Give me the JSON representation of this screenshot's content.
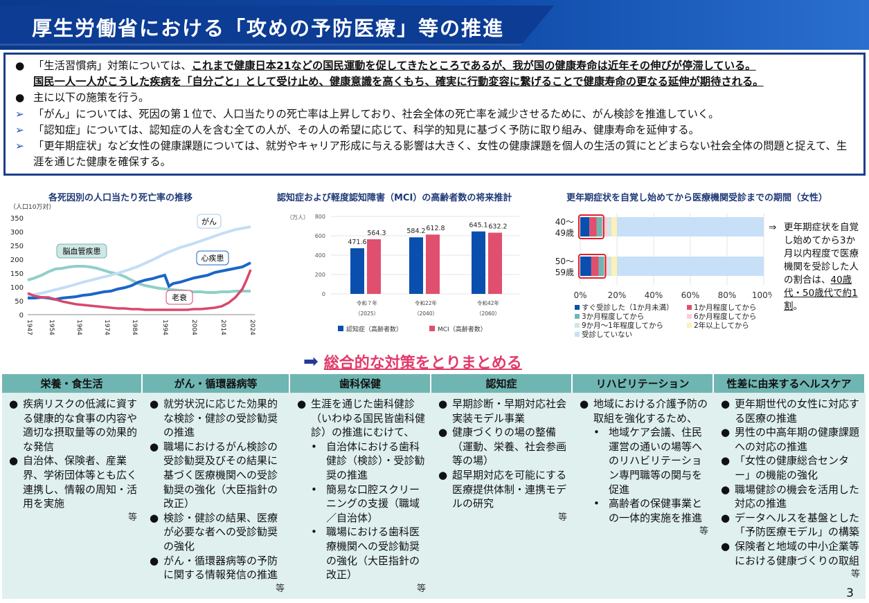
{
  "header": {
    "title": "厚生労働省における「攻めの予防医療」等の推進"
  },
  "summary": {
    "line1_pre": "「生活習慣病」対策については、",
    "line1_bold": "これまで健康日本21などの国民運動を促してきたところであるが、我が国の健康寿命は近年その伸びが停滞している。",
    "line2_bold": "国民一人一人がこうした疾病を「自分ごと」として受け止め、健康意識を高くもち、確実に行動変容に繋げることで健康寿命の更なる延伸が期待される。",
    "line3": "主に以下の施策を行う。",
    "line4": "「がん」については、死因の第１位で、人口当たりの死亡率は上昇しており、社会全体の死亡率を減少させるために、がん検診を推進していく。",
    "line5": "「認知症」については、認知症の人を含む全ての人が、その人の希望に応じて、科学的知見に基づく予防に取り組み、健康寿命を延伸する。",
    "line6": "「更年期症状」など女性の健康課題については、就労やキャリア形成に与える影響は大きく、女性の健康課題を個人の生活の質にとどまらない社会全体の問題と捉えて、生涯を通じた健康を確保する。"
  },
  "chart1": {
    "title": "各死因別の人口当たり死亡率の推移",
    "unit": "（人口10万対）",
    "yticks": [
      "350",
      "300",
      "250",
      "200",
      "150",
      "100",
      "50",
      "0"
    ],
    "xticks": [
      "1947",
      "1954",
      "1964",
      "1974",
      "1984",
      "1994",
      "2004",
      "2014",
      "2024"
    ],
    "labels": {
      "cancer": "がん",
      "stroke": "脳血管疾患",
      "heart": "心疾患",
      "senility": "老衰"
    }
  },
  "chart2": {
    "title": "認知症および軽度認知障害（MCI）の高齢者数の将来推計",
    "unit": "（万人）",
    "yticks": [
      "800",
      "600",
      "400",
      "200",
      "0"
    ],
    "groups": [
      {
        "label": "令和７年",
        "year": "（2025）",
        "dementia": 471.6,
        "mci": 564.3,
        "dementia_label": "471.6",
        "mci_label": "564.3"
      },
      {
        "label": "令和22年",
        "year": "（2040）",
        "dementia": 584.2,
        "mci": 612.8,
        "dementia_label": "584.2",
        "mci_label": "612.8"
      },
      {
        "label": "令和42年",
        "year": "（2060）",
        "dementia": 645.1,
        "mci": 632.2,
        "dementia_label": "645.1",
        "mci_label": "632.2"
      }
    ],
    "legend_dementia": "認知症（高齢者数）",
    "legend_mci": "MCI（高齢者数）",
    "colors": {
      "dementia": "#0b4fae",
      "mci": "#e0506e"
    }
  },
  "chart3": {
    "title": "更年期症状を自覚し始めてから医療機関受診までの期間（女性）",
    "rows": [
      {
        "label_a": "40～",
        "label_b": "49歳",
        "segments": [
          5,
          4,
          3,
          3,
          2,
          3,
          80
        ]
      },
      {
        "label_a": "50～",
        "label_b": "59歳",
        "segments": [
          6,
          4,
          3,
          2,
          2,
          3,
          80
        ]
      }
    ],
    "xticks": [
      "0%",
      "20%",
      "40%",
      "60%",
      "80%",
      "100%"
    ],
    "legend": [
      "すぐ受診した（1か月未満）",
      "1か月程度してから",
      "3か月程度してから",
      "6か月程度してから",
      "9か月～1年程度してから",
      "2年以上してから",
      "受診していない"
    ],
    "colors": [
      "#0b4fae",
      "#e0506e",
      "#6fb6b3",
      "#f6d0d8",
      "#cfe7e5",
      "#fdf0b8",
      "#c7e0f7"
    ],
    "note_pre": "更年期症状を自覚し始めてから3か月以内程度で医療機関を受診した人の割合は、",
    "note_em": "40歳代・50歳代で約1割",
    "note_post": "。"
  },
  "banner": {
    "text": "総合的な対策をとりまとめる"
  },
  "columns": [
    {
      "header": "栄養・食生活",
      "items": [
        "疾病リスクの低減に資する健康的な食事の内容や適切な摂取量等の効果的な発信",
        "自治体、保険者、産業界、学術団体等とも広く連携し、情報の周知・活用を実施"
      ],
      "etc": "等"
    },
    {
      "header": "がん・循環器病等",
      "items": [
        "就労状況に応じた効果的な検診・健診の受診勧奨の推進",
        "職場におけるがん検診の受診勧奨及びその結果に基づく医療機関への受診勧奨の強化（大臣指針の改正）",
        "検診・健診の結果、医療が必要な者への受診勧奨の強化",
        "がん・循環器病等の予防に関する情報発信の推進"
      ],
      "etc": "等"
    },
    {
      "header": "歯科保健",
      "items": [
        "生涯を通じた歯科健診（いわゆる国民皆歯科健診）の推進にむけて、"
      ],
      "subs": [
        "自治体における歯科健診（検診）・受診勧奨の推進",
        "簡易な口腔スクリーニングの支援（職域／自治体）",
        "職場における歯科医療機関への受診勧奨の強化（大臣指針の改正）"
      ],
      "etc": "等"
    },
    {
      "header": "認知症",
      "items": [
        "早期診断・早期対応社会実装モデル事業",
        "健康づくりの場の整備（運動、栄養、社会参画等の場）",
        "超早期対応を可能にする医療提供体制・連携モデルの研究"
      ],
      "etc": "等"
    },
    {
      "header": "リハビリテーション",
      "items": [
        "地域における介護予防の取組を強化するため、"
      ],
      "subs": [
        "地域ケア会議、住民運営の通いの場等へのリハビリテーション専門職等の関与を促進",
        "高齢者の保健事業との一体的実施を推進"
      ],
      "etc": "等"
    },
    {
      "header": "性差に由来するヘルスケア",
      "items": [
        "更年期世代の女性に対応する医療の推進",
        "男性の中高年期の健康課題への対応の推進",
        "「女性の健康総合センター」の機能の強化",
        "職場健診の機会を活用した対応の推進",
        "データヘルスを基盤とした「予防医療モデル」の構築",
        "保険者と地域の中小企業等における健康づくりの取組"
      ],
      "etc": "等"
    }
  ],
  "page_number": "3"
}
